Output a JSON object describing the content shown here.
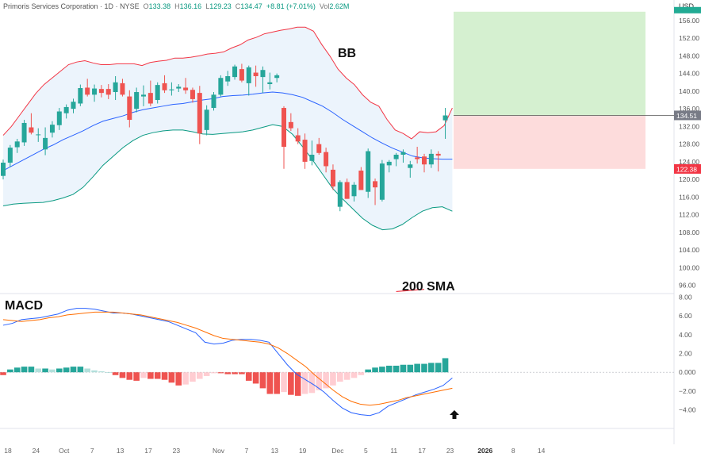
{
  "header": {
    "symbol": "Primoris Services Corporation",
    "interval": "1D",
    "exchange": "NYSE",
    "open_label": "O",
    "open": "133.38",
    "high_label": "H",
    "high": "136.16",
    "low_label": "L",
    "low": "129.23",
    "close_label": "C",
    "close": "134.47",
    "change": "+8.81 (+7.01%)",
    "volume_label": "Vol",
    "volume": "2.62M"
  },
  "currency": "USD",
  "colors": {
    "up": "#26a69a",
    "down": "#ef5350",
    "bb_upper": "#f23645",
    "bb_lower": "#089981",
    "bb_basis": "#2962ff",
    "bb_fill": "#eaf3fc",
    "macd_line": "#2962ff",
    "signal_line": "#ff6d00",
    "hist_up_strong": "#26a69a",
    "hist_up_weak": "#b2dfdb",
    "hist_down_strong": "#ef5350",
    "hist_down_weak": "#ffcdd2",
    "target_zone": "#d5f0d0",
    "stop_zone": "#fddcdc"
  },
  "chart_data": [
    {
      "type": "candlestick",
      "title": "",
      "annotations": [
        "BB",
        "200 SMA"
      ],
      "y_ticks": [
        96,
        100,
        104,
        108,
        112,
        116,
        120,
        124,
        128,
        132,
        136,
        140,
        144,
        148,
        152,
        156
      ],
      "y_tick_labels": [
        "96.00",
        "100.00",
        "104.00",
        "108.00",
        "112.00",
        "116.00",
        "120.00",
        "124.00",
        "128.00",
        "132.00",
        "136.00",
        "140.00",
        "144.00",
        "148.00",
        "152.00",
        "156.00"
      ],
      "ylim": [
        94.5,
        158.5
      ],
      "price_tags": [
        {
          "value": 134.51,
          "label": "134.51"
        },
        {
          "value": 122.38,
          "label": "122.38"
        }
      ],
      "position_tool": {
        "entry": 134.5,
        "target": 158,
        "stop": 122.4
      },
      "candles": [
        {
          "o": 120.8,
          "h": 124.5,
          "l": 120.0,
          "c": 123.8
        },
        {
          "o": 123.8,
          "h": 127.8,
          "l": 122.8,
          "c": 127.2
        },
        {
          "o": 127.3,
          "h": 129.2,
          "l": 126.0,
          "c": 128.6
        },
        {
          "o": 128.4,
          "h": 133.5,
          "l": 127.6,
          "c": 132.8
        },
        {
          "o": 131.8,
          "h": 135.0,
          "l": 130.2,
          "c": 130.6
        },
        {
          "o": 130.2,
          "h": 131.6,
          "l": 128.5,
          "c": 130.2
        },
        {
          "o": 126.8,
          "h": 131.8,
          "l": 125.5,
          "c": 129.4
        },
        {
          "o": 130.6,
          "h": 133.2,
          "l": 129.5,
          "c": 132.4
        },
        {
          "o": 132.3,
          "h": 136.2,
          "l": 131.2,
          "c": 135.4
        },
        {
          "o": 135.0,
          "h": 137.0,
          "l": 133.8,
          "c": 136.4
        },
        {
          "o": 136.0,
          "h": 138.3,
          "l": 135.0,
          "c": 137.6
        },
        {
          "o": 137.2,
          "h": 141.5,
          "l": 136.6,
          "c": 140.7
        },
        {
          "o": 140.8,
          "h": 142.8,
          "l": 138.8,
          "c": 139.2
        },
        {
          "o": 139.2,
          "h": 141.5,
          "l": 137.6,
          "c": 140.6
        },
        {
          "o": 140.5,
          "h": 141.4,
          "l": 138.6,
          "c": 139.6
        },
        {
          "o": 140.5,
          "h": 141.6,
          "l": 138.2,
          "c": 139.2
        },
        {
          "o": 139.8,
          "h": 143.4,
          "l": 138.0,
          "c": 142.0
        },
        {
          "o": 141.8,
          "h": 142.8,
          "l": 138.8,
          "c": 139.2
        },
        {
          "o": 138.8,
          "h": 140.2,
          "l": 131.8,
          "c": 133.5
        },
        {
          "o": 136.0,
          "h": 140.8,
          "l": 135.2,
          "c": 139.8
        },
        {
          "o": 138.8,
          "h": 141.3,
          "l": 136.6,
          "c": 139.2
        },
        {
          "o": 139.6,
          "h": 142.4,
          "l": 136.6,
          "c": 137.2
        },
        {
          "o": 138.0,
          "h": 142.0,
          "l": 137.2,
          "c": 141.4
        },
        {
          "o": 141.8,
          "h": 143.6,
          "l": 139.6,
          "c": 140.2
        },
        {
          "o": 140.2,
          "h": 142.0,
          "l": 139.0,
          "c": 140.4
        },
        {
          "o": 140.6,
          "h": 141.6,
          "l": 139.8,
          "c": 141.0
        },
        {
          "o": 140.8,
          "h": 143.0,
          "l": 139.4,
          "c": 140.2
        },
        {
          "o": 140.3,
          "h": 140.8,
          "l": 137.4,
          "c": 138.2
        },
        {
          "o": 139.6,
          "h": 141.2,
          "l": 128.0,
          "c": 130.4
        },
        {
          "o": 131.2,
          "h": 136.8,
          "l": 130.0,
          "c": 135.8
        },
        {
          "o": 136.2,
          "h": 139.8,
          "l": 135.6,
          "c": 139.2
        },
        {
          "o": 139.2,
          "h": 143.6,
          "l": 138.8,
          "c": 143.0
        },
        {
          "o": 142.2,
          "h": 144.6,
          "l": 141.2,
          "c": 143.4
        },
        {
          "o": 143.2,
          "h": 146.0,
          "l": 142.6,
          "c": 145.6
        },
        {
          "o": 145.0,
          "h": 146.2,
          "l": 142.0,
          "c": 142.4
        },
        {
          "o": 141.8,
          "h": 145.8,
          "l": 139.0,
          "c": 145.4
        },
        {
          "o": 144.2,
          "h": 145.8,
          "l": 141.0,
          "c": 143.4
        },
        {
          "o": 143.2,
          "h": 145.6,
          "l": 139.6,
          "c": 144.8
        },
        {
          "o": 141.6,
          "h": 144.2,
          "l": 140.4,
          "c": 142.0
        },
        {
          "o": 143.0,
          "h": 144.0,
          "l": 142.0,
          "c": 143.6
        },
        {
          "o": 136.2,
          "h": 136.6,
          "l": 122.4,
          "c": 127.4
        },
        {
          "o": 133.0,
          "h": 135.0,
          "l": 131.0,
          "c": 131.6
        },
        {
          "o": 130.0,
          "h": 131.6,
          "l": 128.0,
          "c": 128.6
        },
        {
          "o": 129.0,
          "h": 130.4,
          "l": 122.4,
          "c": 124.0
        },
        {
          "o": 124.2,
          "h": 128.8,
          "l": 123.2,
          "c": 125.6
        },
        {
          "o": 128.0,
          "h": 129.4,
          "l": 125.6,
          "c": 126.0
        },
        {
          "o": 126.2,
          "h": 127.2,
          "l": 121.6,
          "c": 123.0
        },
        {
          "o": 122.2,
          "h": 123.4,
          "l": 117.6,
          "c": 118.4
        },
        {
          "o": 113.8,
          "h": 119.8,
          "l": 112.8,
          "c": 119.4
        },
        {
          "o": 119.4,
          "h": 120.2,
          "l": 115.6,
          "c": 115.6
        },
        {
          "o": 116.2,
          "h": 119.4,
          "l": 115.0,
          "c": 118.8
        },
        {
          "o": 122.0,
          "h": 122.8,
          "l": 117.6,
          "c": 117.6
        },
        {
          "o": 117.2,
          "h": 127.0,
          "l": 115.8,
          "c": 126.4
        },
        {
          "o": 119.6,
          "h": 120.2,
          "l": 114.2,
          "c": 118.2
        },
        {
          "o": 115.4,
          "h": 124.4,
          "l": 115.0,
          "c": 123.6
        },
        {
          "o": 123.2,
          "h": 124.4,
          "l": 121.6,
          "c": 124.0
        },
        {
          "o": 124.6,
          "h": 126.0,
          "l": 123.0,
          "c": 125.6
        },
        {
          "o": 125.6,
          "h": 126.8,
          "l": 123.8,
          "c": 126.2
        },
        {
          "o": 122.6,
          "h": 124.2,
          "l": 120.4,
          "c": 123.4
        },
        {
          "o": 125.0,
          "h": 127.4,
          "l": 123.6,
          "c": 124.6
        },
        {
          "o": 125.2,
          "h": 125.8,
          "l": 121.6,
          "c": 123.4
        },
        {
          "o": 123.4,
          "h": 126.8,
          "l": 122.6,
          "c": 125.8
        },
        {
          "o": 125.8,
          "h": 126.4,
          "l": 121.8,
          "c": 125.4
        },
        {
          "o": 133.4,
          "h": 136.2,
          "l": 129.2,
          "c": 134.5
        }
      ],
      "bb_upper": [
        130,
        132,
        134.5,
        137,
        139.5,
        141.5,
        143,
        144.5,
        146,
        146.6,
        146.9,
        146.4,
        146,
        146,
        146.2,
        146.2,
        146.2,
        145.8,
        146.5,
        146.8,
        147,
        147.5,
        147.5,
        147.7,
        148,
        148.4,
        148.6,
        148.9,
        149.8,
        150.5,
        151.6,
        152.2,
        153,
        153.4,
        153.8,
        154.1,
        154.5,
        154.5,
        153.6,
        150.6,
        148,
        145,
        143,
        141.5,
        139.2,
        137.5,
        136.6,
        133.6,
        131.2,
        130.4,
        129.2,
        130.8,
        130.6,
        130.8,
        132.2,
        136.2
      ],
      "bb_upper_x": [
        0,
        4,
        8,
        12,
        16,
        20,
        24,
        28,
        32,
        36,
        40,
        44,
        48,
        52,
        56,
        60,
        64,
        68,
        72,
        76,
        80,
        84,
        88,
        92,
        96,
        100,
        104,
        108,
        112,
        116,
        120,
        124,
        128,
        132,
        136,
        140,
        144,
        148,
        152,
        156,
        160,
        164,
        168,
        172,
        176,
        180,
        184,
        188,
        192,
        196,
        200,
        204,
        208,
        212,
        216,
        220
      ],
      "bb_basis": [
        122,
        123.2,
        124.4,
        125.6,
        126.8,
        127.8,
        129,
        130,
        131,
        132.2,
        133.2,
        133.8,
        134.4,
        135.2,
        135.8,
        136.2,
        136.6,
        137,
        137.2,
        137.6,
        138,
        138.3,
        138.8,
        139,
        139.1,
        139.3,
        139.6,
        139.8,
        139.6,
        139.2,
        138.6,
        137.6,
        136.6,
        135.2,
        133.6,
        132.2,
        130.8,
        129.4,
        128.2,
        127.1,
        126.2,
        125.3,
        124.9,
        124.7,
        124.6,
        124.6
      ],
      "bb_lower": [
        114,
        114.4,
        114.6,
        114.7,
        114.8,
        115.2,
        115.8,
        116.6,
        118.2,
        120.6,
        123.2,
        125.2,
        127.2,
        128.8,
        130,
        130.6,
        131,
        131.2,
        131.2,
        130.8,
        130.3,
        130.2,
        130.4,
        130.6,
        130.8,
        131.2,
        131.8,
        132.4,
        132,
        130.2,
        127.4,
        124.4,
        121.2,
        118,
        115.6,
        113.4,
        111.2,
        109.6,
        108.6,
        108.8,
        109.8,
        111.4,
        112.8,
        113.6,
        113.8,
        112.8
      ],
      "bb_basis_x": [
        0,
        4,
        8,
        12,
        16,
        20,
        24,
        28,
        32,
        36,
        40,
        44,
        48,
        52,
        56,
        60,
        64,
        68,
        72,
        76,
        80,
        84,
        88,
        92,
        96,
        100,
        104,
        108,
        112,
        116,
        120,
        124,
        128,
        132,
        136,
        140,
        144,
        148,
        152,
        156,
        160,
        164,
        168,
        172,
        176,
        180
      ],
      "sma200_visible": [
        {
          "x": 56.0,
          "y": 94.6
        },
        {
          "x": 60.0,
          "y": 95.1
        }
      ]
    },
    {
      "type": "macd",
      "title": "MACD",
      "y_ticks": [
        8,
        6,
        4,
        2,
        0,
        -2,
        -4
      ],
      "y_tick_labels": [
        "8.00",
        "6.00",
        "4.00",
        "2.00",
        "0.000",
        "−2.00",
        "−4.00"
      ],
      "ylim": [
        -5.8,
        8.2
      ],
      "macd": [
        5.0,
        5.2,
        5.6,
        5.7,
        5.8,
        6.0,
        6.2,
        6.6,
        6.8,
        6.8,
        6.7,
        6.5,
        6.3,
        6.3,
        6.2,
        6.0,
        5.8,
        5.6,
        5.4,
        5.0,
        4.6,
        4.2,
        3.2,
        3.0,
        3.1,
        3.4,
        3.5,
        3.5,
        3.4,
        3.2,
        2.0,
        0.8,
        -0.2,
        -0.8,
        -1.4,
        -2.1,
        -3.0,
        -3.8,
        -4.3,
        -4.5,
        -4.6,
        -4.3,
        -3.6,
        -3.2,
        -2.8,
        -2.4,
        -2.1,
        -1.8,
        -1.4,
        -0.6
      ],
      "signal": [
        5.6,
        5.5,
        5.4,
        5.5,
        5.6,
        5.8,
        5.9,
        6.1,
        6.2,
        6.3,
        6.4,
        6.4,
        6.4,
        6.3,
        6.2,
        6.1,
        5.9,
        5.7,
        5.5,
        5.3,
        5.0,
        4.7,
        4.3,
        3.9,
        3.6,
        3.5,
        3.4,
        3.3,
        3.2,
        3.0,
        2.6,
        2.0,
        1.3,
        0.6,
        -0.3,
        -1.1,
        -1.9,
        -2.6,
        -3.1,
        -3.4,
        -3.5,
        -3.4,
        -3.2,
        -3.0,
        -2.7,
        -2.5,
        -2.3,
        -2.1,
        -1.9,
        -1.7
      ],
      "histogram": [
        -0.3,
        0.3,
        0.5,
        0.6,
        0.6,
        0.4,
        0.4,
        0.3,
        0.4,
        0.5,
        0.6,
        0.6,
        0.4,
        0.2,
        0.1,
        0,
        -0.3,
        -0.6,
        -0.8,
        -0.9,
        -0.6,
        -0.7,
        -0.7,
        -0.8,
        -1.1,
        -1.4,
        -1.3,
        -1.0,
        -0.7,
        -0.4,
        -0.1,
        -0.1,
        -0.2,
        -0.2,
        -0.2,
        -0.9,
        -1.2,
        -1.7,
        -2.3,
        -2.3,
        -2.1,
        -2.4,
        -2.5,
        -2.3,
        -2.2,
        -1.9,
        -1.7,
        -1.4,
        -1.0,
        -0.8,
        -0.6,
        -0.3,
        0.3,
        0.5,
        0.6,
        0.7,
        0.7,
        0.8,
        0.8,
        0.9,
        0.9,
        1.0,
        1.0,
        1.5
      ]
    }
  ],
  "x_axis": {
    "ticks": [
      {
        "i": 0,
        "label": "18"
      },
      {
        "i": 4,
        "label": "24"
      },
      {
        "i": 8,
        "label": "Oct"
      },
      {
        "i": 12,
        "label": "7"
      },
      {
        "i": 16,
        "label": "13"
      },
      {
        "i": 20,
        "label": "17"
      },
      {
        "i": 24,
        "label": "23"
      },
      {
        "i": 30,
        "label": "Nov"
      },
      {
        "i": 34,
        "label": "7"
      },
      {
        "i": 38,
        "label": "13"
      },
      {
        "i": 42,
        "label": "19"
      },
      {
        "i": 47,
        "label": "Dec"
      },
      {
        "i": 51,
        "label": "5"
      },
      {
        "i": 55,
        "label": "11"
      },
      {
        "i": 59,
        "label": "17"
      },
      {
        "i": 63,
        "label": "23"
      },
      {
        "i": 68,
        "label": "2026"
      },
      {
        "i": 72,
        "label": "8"
      },
      {
        "i": 76,
        "label": "14"
      }
    ]
  }
}
